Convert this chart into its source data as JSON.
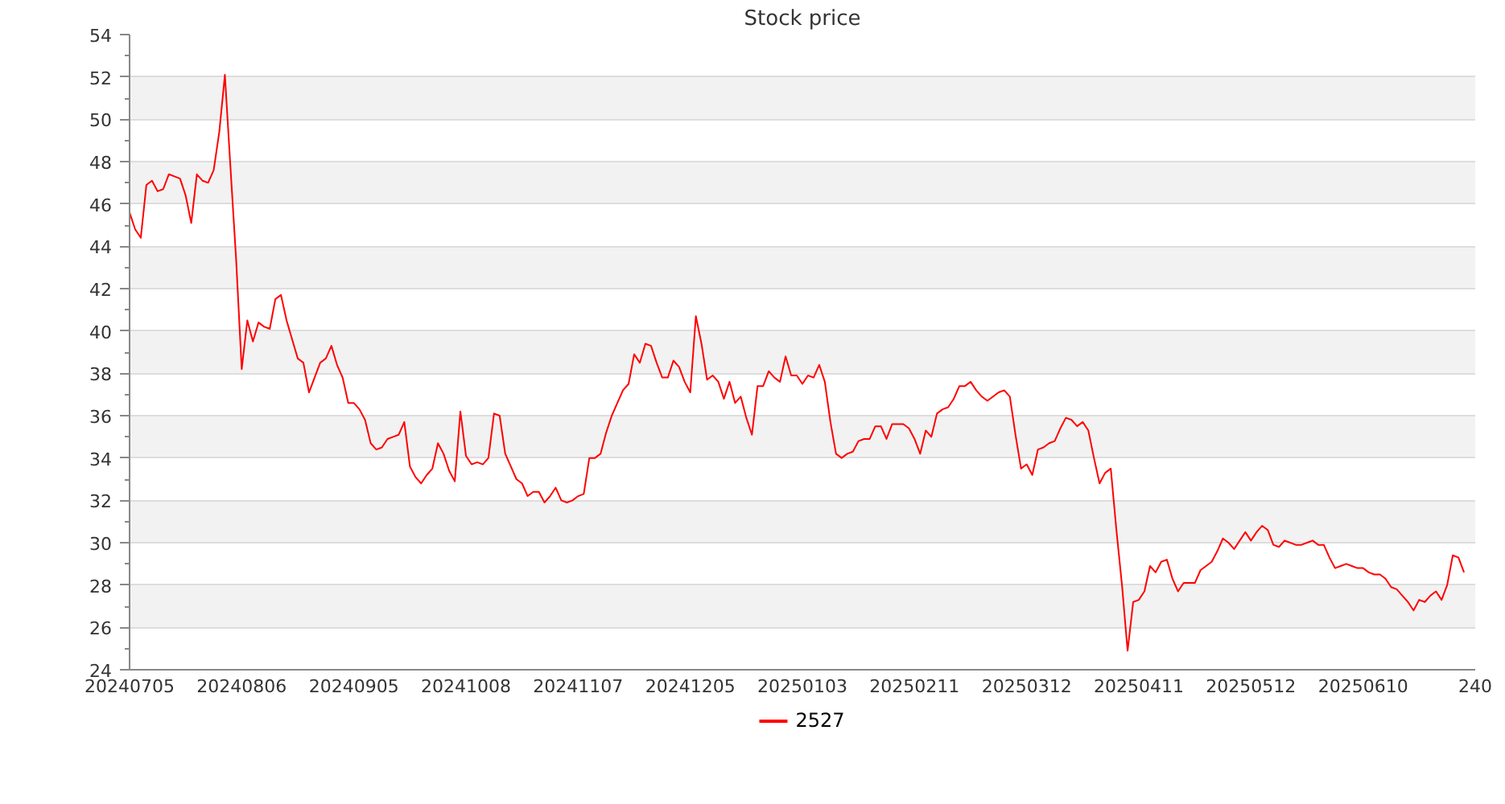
{
  "chart_data": {
    "type": "line",
    "title": "Stock price",
    "categories": [
      "20240705",
      null,
      null,
      null,
      null,
      null,
      null,
      null,
      null,
      null,
      null,
      null,
      null,
      null,
      null,
      null,
      null,
      null,
      null,
      null,
      "20240806",
      null,
      null,
      null,
      null,
      null,
      null,
      null,
      null,
      null,
      null,
      null,
      null,
      null,
      null,
      null,
      null,
      null,
      null,
      null,
      "20240905",
      null,
      null,
      null,
      null,
      null,
      null,
      null,
      null,
      null,
      null,
      null,
      null,
      null,
      null,
      null,
      null,
      null,
      null,
      null,
      "20241008",
      null,
      null,
      null,
      null,
      null,
      null,
      null,
      null,
      null,
      null,
      null,
      null,
      null,
      null,
      null,
      null,
      null,
      null,
      null,
      "20241107",
      null,
      null,
      null,
      null,
      null,
      null,
      null,
      null,
      null,
      null,
      null,
      null,
      null,
      null,
      null,
      null,
      null,
      null,
      null,
      "20241205",
      null,
      null,
      null,
      null,
      null,
      null,
      null,
      null,
      null,
      null,
      null,
      null,
      null,
      null,
      null,
      null,
      null,
      null,
      null,
      "20250103",
      null,
      null,
      null,
      null,
      null,
      null,
      null,
      null,
      null,
      null,
      null,
      null,
      null,
      null,
      null,
      null,
      null,
      null,
      null,
      "20250211",
      null,
      null,
      null,
      null,
      null,
      null,
      null,
      null,
      null,
      null,
      null,
      null,
      null,
      null,
      null,
      null,
      null,
      null,
      null,
      "20250312",
      null,
      null,
      null,
      null,
      null,
      null,
      null,
      null,
      null,
      null,
      null,
      null,
      null,
      null,
      null,
      null,
      null,
      null,
      null,
      "20250411",
      null,
      null,
      null,
      null,
      null,
      null,
      null,
      null,
      null,
      null,
      null,
      null,
      null,
      null,
      null,
      null,
      null,
      null,
      null,
      "20250512",
      null,
      null,
      null,
      null,
      null,
      null,
      null,
      null,
      null,
      null,
      null,
      null,
      null,
      null,
      null,
      null,
      null,
      null,
      null,
      "20250610",
      null,
      null,
      null,
      null,
      null,
      null,
      null,
      null,
      null,
      null,
      null,
      null,
      null,
      null,
      null,
      null,
      null,
      null,
      null,
      "240"
    ],
    "series": [
      {
        "name": "2527",
        "color": "#ff0000",
        "values": [
          45.6,
          44.8,
          44.4,
          46.9,
          47.1,
          46.6,
          46.7,
          47.4,
          47.3,
          47.2,
          46.4,
          45.1,
          47.4,
          47.1,
          47.0,
          47.6,
          49.4,
          52.1,
          47.7,
          43.4,
          38.2,
          40.5,
          39.5,
          40.4,
          40.2,
          40.1,
          41.5,
          41.7,
          40.5,
          39.6,
          38.7,
          38.5,
          37.1,
          37.8,
          38.5,
          38.7,
          39.3,
          38.4,
          37.8,
          36.6,
          36.6,
          36.3,
          35.8,
          34.7,
          34.4,
          34.5,
          34.9,
          35.0,
          35.1,
          35.7,
          33.6,
          33.1,
          32.8,
          33.2,
          33.5,
          34.7,
          34.2,
          33.4,
          32.9,
          36.2,
          34.1,
          33.7,
          33.8,
          33.7,
          34.0,
          36.1,
          36.0,
          34.2,
          33.6,
          33.0,
          32.8,
          32.2,
          32.4,
          32.4,
          31.9,
          32.2,
          32.6,
          32.0,
          31.9,
          32.0,
          32.2,
          32.3,
          34.0,
          34.0,
          34.2,
          35.2,
          36.0,
          36.6,
          37.2,
          37.5,
          38.9,
          38.5,
          39.4,
          39.3,
          38.5,
          37.8,
          37.8,
          38.6,
          38.3,
          37.6,
          37.1,
          40.7,
          39.4,
          37.7,
          37.9,
          37.6,
          36.8,
          37.6,
          36.6,
          36.9,
          35.9,
          35.1,
          37.4,
          37.4,
          38.1,
          37.8,
          37.6,
          38.8,
          37.9,
          37.9,
          37.5,
          37.9,
          37.8,
          38.4,
          37.6,
          35.7,
          34.2,
          34.0,
          34.2,
          34.3,
          34.8,
          34.9,
          34.9,
          35.5,
          35.5,
          34.9,
          35.6,
          35.6,
          35.6,
          35.4,
          34.9,
          34.2,
          35.3,
          35.0,
          36.1,
          36.3,
          36.4,
          36.8,
          37.4,
          37.4,
          37.6,
          37.2,
          36.9,
          36.7,
          36.9,
          37.1,
          37.2,
          36.9,
          35.1,
          33.5,
          33.7,
          33.2,
          34.4,
          34.5,
          34.7,
          34.8,
          35.4,
          35.9,
          35.8,
          35.5,
          35.7,
          35.3,
          34.0,
          32.8,
          33.3,
          33.5,
          30.6,
          28.0,
          24.9,
          27.2,
          27.3,
          27.7,
          28.9,
          28.6,
          29.1,
          29.2,
          28.3,
          27.7,
          28.1,
          28.1,
          28.1,
          28.7,
          28.9,
          29.1,
          29.6,
          30.2,
          30.0,
          29.7,
          30.1,
          30.5,
          30.1,
          30.5,
          30.8,
          30.6,
          29.9,
          29.8,
          30.1,
          30.0,
          29.9,
          29.9,
          30.0,
          30.1,
          29.9,
          29.9,
          29.3,
          28.8,
          28.9,
          29.0,
          28.9,
          28.8,
          28.8,
          28.6,
          28.5,
          28.5,
          28.3,
          27.9,
          27.8,
          27.5,
          27.2,
          26.8,
          27.3,
          27.2,
          27.5,
          27.7,
          27.3,
          28.0,
          29.4,
          29.3,
          28.6,
          null,
          null
        ]
      }
    ],
    "ylim": [
      24,
      54
    ],
    "yticks": [
      24,
      26,
      28,
      30,
      32,
      34,
      36,
      38,
      40,
      42,
      44,
      46,
      48,
      50,
      52,
      54
    ],
    "grid": "y",
    "legend": "bottom",
    "marker": "none",
    "line_style": "solid"
  }
}
